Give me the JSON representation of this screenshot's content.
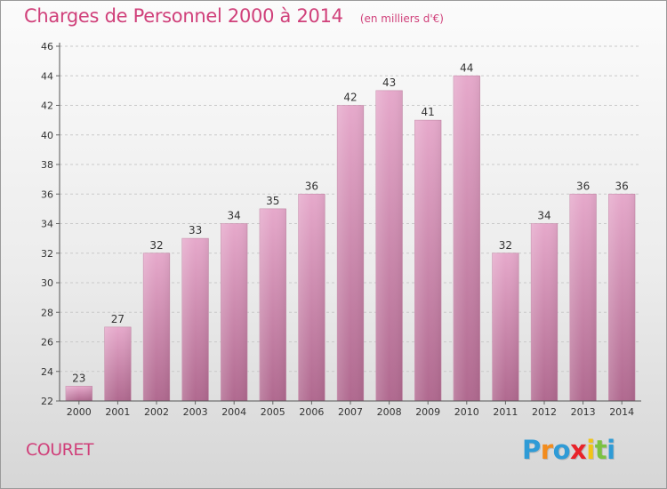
{
  "header": {
    "title": "Charges de Personnel 2000 à 2014",
    "subtitle": "(en milliers d'€)"
  },
  "footer": {
    "commune": "COURET",
    "logo_text": "Proxiti",
    "logo_colors": [
      "#2f9bd6",
      "#f28c1e",
      "#2f9bd6",
      "#e8232a",
      "#f2c417",
      "#7cc242",
      "#2f9bd6"
    ]
  },
  "chart_data": {
    "type": "bar",
    "categories": [
      "2000",
      "2001",
      "2002",
      "2003",
      "2004",
      "2005",
      "2006",
      "2007",
      "2008",
      "2009",
      "2010",
      "2011",
      "2012",
      "2013",
      "2014"
    ],
    "values": [
      23,
      27,
      32,
      33,
      34,
      35,
      36,
      42,
      43,
      41,
      44,
      32,
      34,
      36,
      36
    ],
    "title": "Charges de Personnel 2000 à 2014",
    "subtitle": "(en milliers d'€)",
    "ylim": [
      22,
      46
    ],
    "yticks": [
      22,
      24,
      26,
      28,
      30,
      32,
      34,
      36,
      38,
      40,
      42,
      44,
      46
    ],
    "grid": true,
    "bar_color": "#d889b3"
  }
}
